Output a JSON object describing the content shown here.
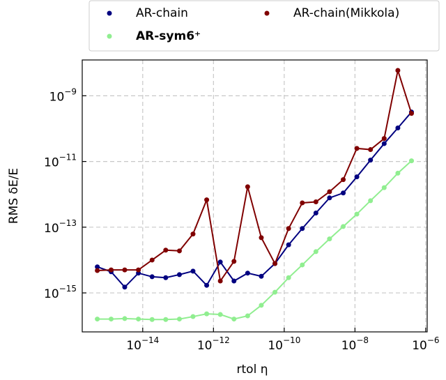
{
  "chart_data": {
    "type": "line",
    "xlabel": "rtol η",
    "ylabel": "RMS δE/E",
    "log_x": true,
    "log_y": true,
    "grid": true,
    "legend": "upper center",
    "x": [
      5.2e-16,
      1.28e-15,
      3.1e-15,
      7.55e-15,
      1.84e-14,
      4.47e-14,
      1.09e-13,
      2.64e-13,
      6.43e-13,
      1.56e-12,
      3.8e-12,
      9.25e-12,
      2.25e-11,
      5.47e-11,
      1.33e-10,
      3.24e-10,
      7.87e-10,
      1.91e-09,
      4.66e-09,
      1.13e-08,
      2.75e-08,
      6.7e-08,
      1.63e-07,
      3.96e-07
    ],
    "series": [
      {
        "name": "AR-chain",
        "color": "#000080",
        "values": [
          6.2e-15,
          4.4e-15,
          1.5e-15,
          4e-15,
          3.1e-15,
          2.9e-15,
          3.6e-15,
          4.6e-15,
          1.7e-15,
          8.7e-15,
          2.3e-15,
          4e-15,
          3.2e-15,
          7.8e-15,
          2.9e-14,
          9.1e-14,
          2.7e-13,
          7.8e-13,
          1.1e-12,
          3.4e-12,
          1.1e-11,
          3.5e-11,
          1.05e-10,
          3.2e-10
        ]
      },
      {
        "name": "AR-chain(Mikkola)",
        "color": "#800000",
        "values": [
          4.8e-15,
          5e-15,
          5e-15,
          5e-15,
          1e-14,
          2e-14,
          1.9e-14,
          6.2e-14,
          6.8e-13,
          2.3e-15,
          9.1e-15,
          1.7e-12,
          4.8e-14,
          7.8e-15,
          9.1e-14,
          5.5e-13,
          5.9e-13,
          1.2e-12,
          2.8e-12,
          2.5e-11,
          2.3e-11,
          5e-11,
          5.9e-09,
          2.9e-10
        ]
      },
      {
        "name": "AR-sym6⁺",
        "color": "#90ee90",
        "values": [
          1.6e-16,
          1.6e-16,
          1.65e-16,
          1.6e-16,
          1.55e-16,
          1.55e-16,
          1.6e-16,
          1.9e-16,
          2.3e-16,
          2.2e-16,
          1.6e-16,
          2e-16,
          4.2e-16,
          1.05e-15,
          2.9e-15,
          7.1e-15,
          1.8e-14,
          4.4e-14,
          1.05e-13,
          2.5e-13,
          6.4e-13,
          1.6e-12,
          4.4e-12,
          1.05e-11
        ]
      }
    ],
    "xlim": [
      1.95e-16,
      1.1e-06
    ],
    "ylim": [
      6.5e-17,
      1.23e-08
    ],
    "xticks": [
      {
        "value": 1e-14,
        "label": "10",
        "exponent": "−14"
      },
      {
        "value": 1e-12,
        "label": "10",
        "exponent": "−12"
      },
      {
        "value": 1e-10,
        "label": "10",
        "exponent": "−10"
      },
      {
        "value": 1e-08,
        "label": "10",
        "exponent": "−8"
      },
      {
        "value": 1e-06,
        "label": "10",
        "exponent": "−6"
      }
    ],
    "yticks": [
      {
        "value": 1e-15,
        "label": "10",
        "exponent": "−15"
      },
      {
        "value": 1e-13,
        "label": "10",
        "exponent": "−13"
      },
      {
        "value": 1e-11,
        "label": "10",
        "exponent": "−11"
      },
      {
        "value": 1e-09,
        "label": "10",
        "exponent": "−9"
      }
    ]
  }
}
